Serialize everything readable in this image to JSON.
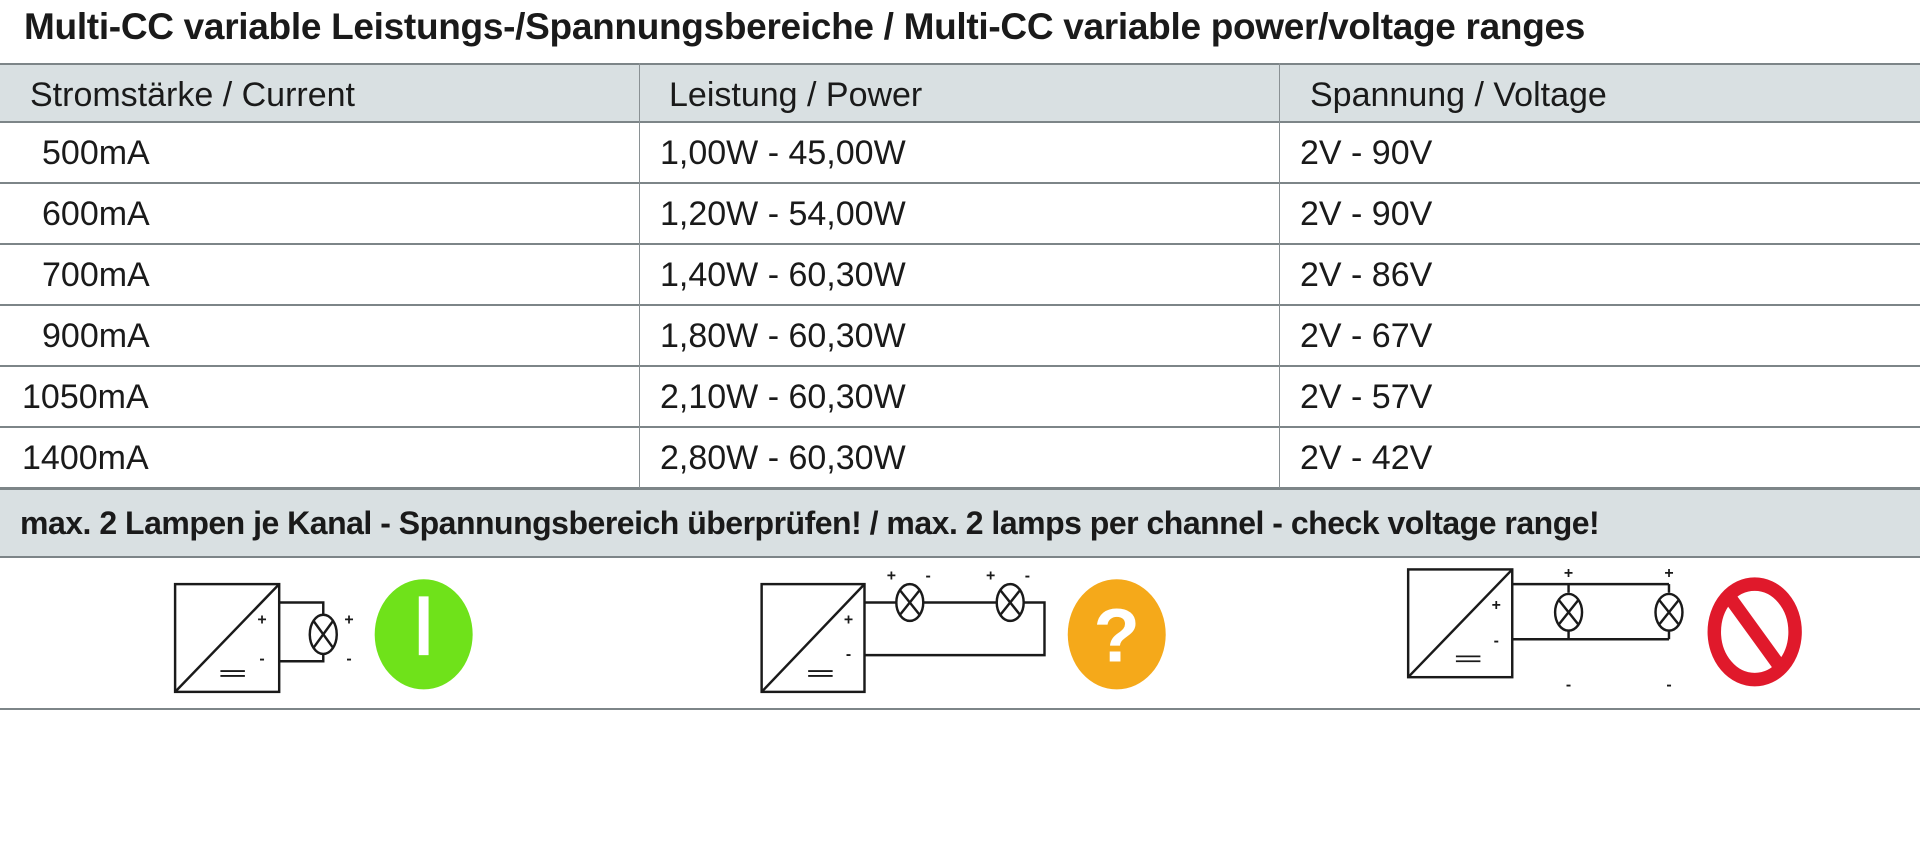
{
  "title": "Multi-CC variable Leistungs-/Spannungsbereiche / Multi-CC  variable power/voltage ranges",
  "table": {
    "headers": [
      "Stromstärke / Current",
      "Leistung / Power",
      "Spannung / Voltage"
    ],
    "rows": [
      {
        "current": "500mA",
        "power": "1,00W - 45,00W",
        "voltage": "2V - 90V"
      },
      {
        "current": "600mA",
        "power": "1,20W - 54,00W",
        "voltage": "2V - 90V"
      },
      {
        "current": "700mA",
        "power": "1,40W - 60,30W",
        "voltage": "2V - 86V"
      },
      {
        "current": "900mA",
        "power": "1,80W - 60,30W",
        "voltage": "2V - 67V"
      },
      {
        "current": "1050mA",
        "power": "2,10W - 60,30W",
        "voltage": "2V - 57V"
      },
      {
        "current": "1400mA",
        "power": "2,80W - 60,30W",
        "voltage": "2V - 42V"
      }
    ]
  },
  "note": "max. 2 Lampen je Kanal - Spannungsbereich überprüfen! / max. 2 lamps per channel - check voltage range!",
  "diagrams": [
    {
      "wiring": "single lamp",
      "status_icon": "exclamation-icon",
      "status_color": "#6fe21a",
      "symbol": "!"
    },
    {
      "wiring": "series",
      "status_icon": "question-icon",
      "status_color": "#f5a91a",
      "symbol": "?"
    },
    {
      "wiring": "parallel",
      "status_icon": "prohibited-icon",
      "status_color": "#e0192b"
    }
  ],
  "colors": {
    "header_bg": "#d9e0e2",
    "border": "#7d8588"
  }
}
